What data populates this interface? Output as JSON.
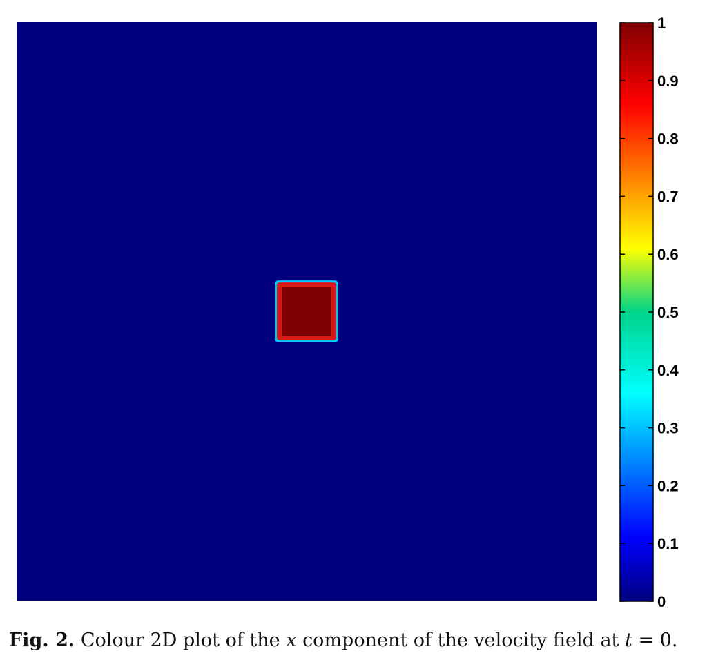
{
  "chart_data": {
    "type": "heatmap",
    "title": "",
    "xlabel": "",
    "ylabel": "",
    "x_range": [
      0,
      1
    ],
    "y_range": [
      0,
      1
    ],
    "background_value": 0,
    "regions": [
      {
        "label": "square",
        "value": 1,
        "x": [
          0.45,
          0.55
        ],
        "y": [
          0.45,
          0.55
        ]
      }
    ],
    "colorbar": {
      "range": [
        0,
        1
      ],
      "ticks": [
        0,
        0.1,
        0.2,
        0.3,
        0.4,
        0.5,
        0.6,
        0.7,
        0.8,
        0.9,
        1
      ],
      "tick_labels": [
        "0",
        "0.1",
        "0.2",
        "0.3",
        "0.4",
        "0.5",
        "0.6",
        "0.7",
        "0.8",
        "0.9",
        "1"
      ],
      "colormap": "jet"
    }
  },
  "colors": {
    "low": "#00007f",
    "high": "#7f0000"
  },
  "caption": {
    "label": "Fig. 2.",
    "text_part1": "Colour 2D plot of the",
    "var_x": "x",
    "text_part2": "component of the velocity field at",
    "var_t": "t",
    "text_part3": "= 0."
  }
}
